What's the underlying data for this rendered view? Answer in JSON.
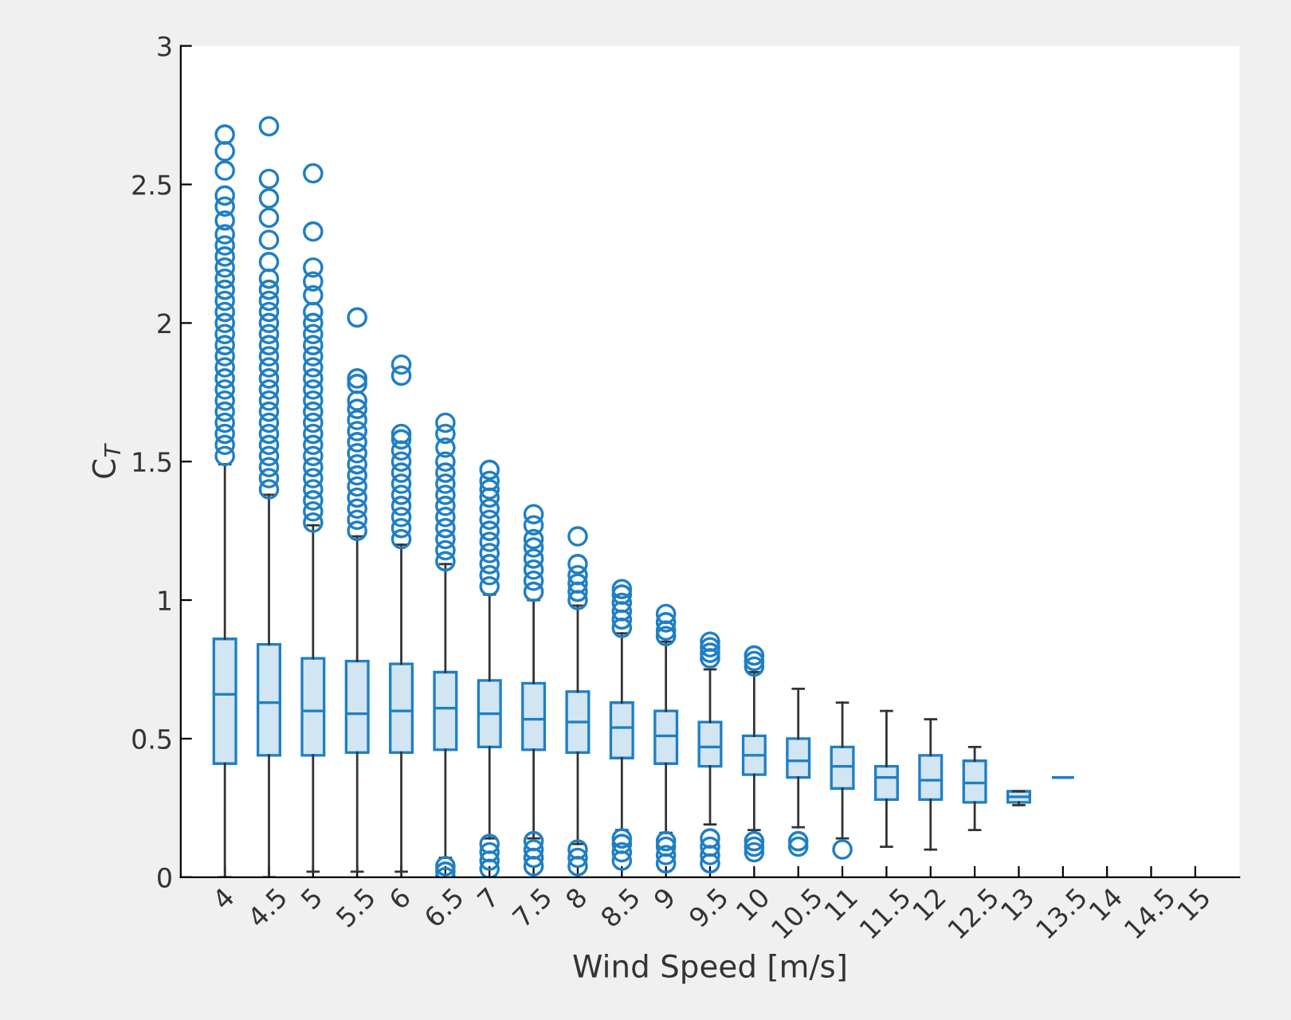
{
  "chart_data": {
    "type": "box",
    "xlabel": "Wind Speed [m/s]",
    "ylabel": "C$_{T}$",
    "categories": [
      "4",
      "4.5",
      "5",
      "5.5",
      "6",
      "6.5",
      "7",
      "7.5",
      "8",
      "8.5",
      "9",
      "9.5",
      "10",
      "10.5",
      "11",
      "11.5",
      "12",
      "12.5",
      "13",
      "13.5",
      "14",
      "14.5",
      "15"
    ],
    "ylim": [
      0,
      3
    ],
    "yticks": [
      0,
      0.5,
      1,
      1.5,
      2,
      2.5,
      3
    ],
    "grid": false,
    "color": "#1f7fc4",
    "boxes": [
      {
        "low": 0,
        "q1": 0.41,
        "median": 0.66,
        "q3": 0.86,
        "high": 1.49,
        "outliers": [
          1.52,
          1.56,
          1.6,
          1.64,
          1.68,
          1.72,
          1.76,
          1.8,
          1.84,
          1.88,
          1.92,
          1.96,
          2.0,
          2.04,
          2.08,
          2.12,
          2.16,
          2.2,
          2.24,
          2.28,
          2.32,
          2.37,
          2.42,
          2.46,
          2.55,
          2.62,
          2.68
        ]
      },
      {
        "low": 0,
        "q1": 0.44,
        "median": 0.63,
        "q3": 0.84,
        "high": 1.38,
        "outliers": [
          1.4,
          1.44,
          1.48,
          1.52,
          1.56,
          1.6,
          1.64,
          1.68,
          1.72,
          1.76,
          1.8,
          1.84,
          1.88,
          1.92,
          1.96,
          2.0,
          2.04,
          2.08,
          2.12,
          2.16,
          2.22,
          2.3,
          2.38,
          2.45,
          2.52,
          2.71
        ]
      },
      {
        "low": 0.02,
        "q1": 0.44,
        "median": 0.6,
        "q3": 0.79,
        "high": 1.27,
        "outliers": [
          1.28,
          1.32,
          1.36,
          1.4,
          1.44,
          1.48,
          1.52,
          1.56,
          1.6,
          1.64,
          1.68,
          1.72,
          1.76,
          1.8,
          1.84,
          1.88,
          1.92,
          1.96,
          2.0,
          2.04,
          2.1,
          2.15,
          2.2,
          2.33,
          2.54
        ]
      },
      {
        "low": 0.02,
        "q1": 0.45,
        "median": 0.59,
        "q3": 0.78,
        "high": 1.23,
        "outliers": [
          1.25,
          1.29,
          1.33,
          1.37,
          1.41,
          1.45,
          1.49,
          1.53,
          1.57,
          1.61,
          1.65,
          1.69,
          1.72,
          1.78,
          1.8,
          2.02
        ]
      },
      {
        "low": 0.02,
        "q1": 0.45,
        "median": 0.6,
        "q3": 0.77,
        "high": 1.2,
        "outliers": [
          1.22,
          1.26,
          1.3,
          1.34,
          1.38,
          1.42,
          1.46,
          1.5,
          1.54,
          1.58,
          1.6,
          1.81,
          1.85
        ]
      },
      {
        "low": 0.07,
        "q1": 0.46,
        "median": 0.61,
        "q3": 0.74,
        "high": 1.13,
        "outliers": [
          0.0,
          0.02,
          0.04,
          1.14,
          1.18,
          1.22,
          1.26,
          1.3,
          1.34,
          1.38,
          1.42,
          1.46,
          1.5,
          1.55,
          1.6,
          1.64
        ]
      },
      {
        "low": 0.14,
        "q1": 0.47,
        "median": 0.59,
        "q3": 0.71,
        "high": 1.02,
        "outliers": [
          0.03,
          0.06,
          0.09,
          0.12,
          1.05,
          1.09,
          1.13,
          1.17,
          1.21,
          1.25,
          1.29,
          1.33,
          1.37,
          1.4,
          1.43,
          1.47
        ]
      },
      {
        "low": 0.14,
        "q1": 0.46,
        "median": 0.57,
        "q3": 0.7,
        "high": 1.0,
        "outliers": [
          0.04,
          0.07,
          0.1,
          0.13,
          1.03,
          1.07,
          1.11,
          1.15,
          1.19,
          1.22,
          1.27,
          1.31
        ]
      },
      {
        "low": 0.12,
        "q1": 0.45,
        "median": 0.56,
        "q3": 0.67,
        "high": 0.98,
        "outliers": [
          0.04,
          0.07,
          0.1,
          1.0,
          1.03,
          1.06,
          1.09,
          1.13,
          1.23
        ]
      },
      {
        "low": 0.17,
        "q1": 0.43,
        "median": 0.54,
        "q3": 0.63,
        "high": 0.88,
        "outliers": [
          0.06,
          0.09,
          0.12,
          0.14,
          0.9,
          0.93,
          0.96,
          0.99,
          1.02,
          1.04
        ]
      },
      {
        "low": 0.16,
        "q1": 0.41,
        "median": 0.51,
        "q3": 0.6,
        "high": 0.85,
        "outliers": [
          0.05,
          0.08,
          0.11,
          0.13,
          0.87,
          0.89,
          0.92,
          0.95
        ]
      },
      {
        "low": 0.19,
        "q1": 0.4,
        "median": 0.47,
        "q3": 0.56,
        "high": 0.75,
        "outliers": [
          0.05,
          0.08,
          0.11,
          0.14,
          0.79,
          0.81,
          0.83,
          0.85
        ]
      },
      {
        "low": 0.17,
        "q1": 0.37,
        "median": 0.44,
        "q3": 0.51,
        "high": 0.74,
        "outliers": [
          0.09,
          0.11,
          0.13,
          0.76,
          0.78,
          0.8
        ]
      },
      {
        "low": 0.18,
        "q1": 0.36,
        "median": 0.42,
        "q3": 0.5,
        "high": 0.68,
        "outliers": [
          0.11,
          0.13
        ]
      },
      {
        "low": 0.14,
        "q1": 0.32,
        "median": 0.4,
        "q3": 0.47,
        "high": 0.63,
        "outliers": [
          0.1
        ]
      },
      {
        "low": 0.11,
        "q1": 0.28,
        "median": 0.36,
        "q3": 0.4,
        "high": 0.6
      },
      {
        "low": 0.1,
        "q1": 0.28,
        "median": 0.35,
        "q3": 0.44,
        "high": 0.57
      },
      {
        "low": 0.17,
        "q1": 0.27,
        "median": 0.34,
        "q3": 0.42,
        "high": 0.47
      },
      {
        "low": 0.26,
        "q1": 0.27,
        "median": 0.29,
        "q3": 0.31,
        "high": 0.31
      },
      {
        "low": 0.36,
        "q1": 0.36,
        "median": 0.36,
        "q3": 0.36,
        "high": 0.36
      },
      null,
      null,
      null
    ]
  }
}
